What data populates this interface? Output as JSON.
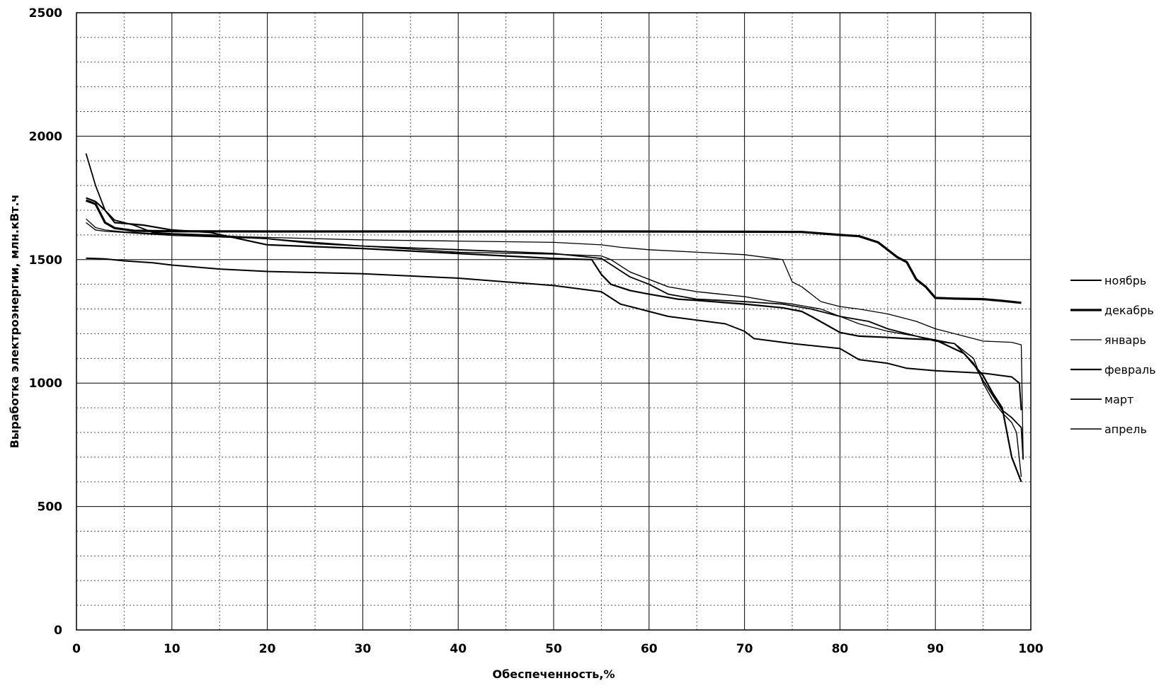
{
  "chart_data": {
    "type": "line",
    "title": "",
    "xlabel": "Обеспеченность,%",
    "ylabel": "Выработка электроэнергии, млн.кВт.ч",
    "xlim": [
      0,
      100
    ],
    "ylim": [
      0,
      2500
    ],
    "x_ticks": [
      0,
      10,
      20,
      30,
      40,
      50,
      60,
      70,
      80,
      90,
      100
    ],
    "y_ticks": [
      0,
      500,
      1000,
      1500,
      2000,
      2500
    ],
    "grid": "major solid, minor dotted",
    "legend_position": "right",
    "series": [
      {
        "name": "ноябрь",
        "points": [
          [
            1,
            1506
          ],
          [
            3,
            1503
          ],
          [
            5,
            1495
          ],
          [
            8,
            1487
          ],
          [
            10,
            1478
          ],
          [
            15,
            1462
          ],
          [
            20,
            1452
          ],
          [
            30,
            1443
          ],
          [
            40,
            1425
          ],
          [
            45,
            1410
          ],
          [
            50,
            1395
          ],
          [
            52,
            1385
          ],
          [
            55,
            1370
          ],
          [
            57,
            1320
          ],
          [
            60,
            1290
          ],
          [
            62,
            1270
          ],
          [
            65,
            1255
          ],
          [
            68,
            1240
          ],
          [
            70,
            1210
          ],
          [
            71,
            1180
          ],
          [
            75,
            1160
          ],
          [
            80,
            1140
          ],
          [
            82,
            1095
          ],
          [
            85,
            1080
          ],
          [
            87,
            1060
          ],
          [
            90,
            1050
          ],
          [
            95,
            1040
          ],
          [
            97,
            1030
          ],
          [
            98,
            1025
          ],
          [
            98.8,
            1000
          ],
          [
            99,
            890
          ]
        ]
      },
      {
        "name": "декабрь",
        "points": [
          [
            1,
            1740
          ],
          [
            2,
            1725
          ],
          [
            3,
            1650
          ],
          [
            4,
            1628
          ],
          [
            6,
            1617
          ],
          [
            10,
            1615
          ],
          [
            20,
            1614
          ],
          [
            30,
            1614
          ],
          [
            40,
            1614
          ],
          [
            50,
            1614
          ],
          [
            58,
            1614
          ],
          [
            70,
            1613
          ],
          [
            76,
            1612
          ],
          [
            80,
            1600
          ],
          [
            82,
            1595
          ],
          [
            84,
            1570
          ],
          [
            86,
            1510
          ],
          [
            87,
            1490
          ],
          [
            88,
            1420
          ],
          [
            89,
            1390
          ],
          [
            90,
            1345
          ],
          [
            92,
            1342
          ],
          [
            95,
            1340
          ],
          [
            97,
            1333
          ],
          [
            99,
            1325
          ]
        ]
      },
      {
        "name": "январь",
        "points": [
          [
            1,
            1665
          ],
          [
            2,
            1630
          ],
          [
            3,
            1620
          ],
          [
            5,
            1612
          ],
          [
            10,
            1602
          ],
          [
            15,
            1595
          ],
          [
            20,
            1590
          ],
          [
            30,
            1580
          ],
          [
            40,
            1575
          ],
          [
            50,
            1570
          ],
          [
            55,
            1560
          ],
          [
            57,
            1550
          ],
          [
            60,
            1540
          ],
          [
            70,
            1520
          ],
          [
            72,
            1510
          ],
          [
            74,
            1500
          ],
          [
            75,
            1410
          ],
          [
            76,
            1390
          ],
          [
            78,
            1330
          ],
          [
            80,
            1310
          ],
          [
            82,
            1300
          ],
          [
            85,
            1280
          ],
          [
            88,
            1250
          ],
          [
            90,
            1220
          ],
          [
            93,
            1190
          ],
          [
            95,
            1170
          ],
          [
            98,
            1165
          ],
          [
            99,
            1155
          ],
          [
            99.2,
            700
          ]
        ]
      },
      {
        "name": "февраль",
        "points": [
          [
            1,
            1750
          ],
          [
            2,
            1735
          ],
          [
            3,
            1700
          ],
          [
            4,
            1650
          ],
          [
            7,
            1640
          ],
          [
            10,
            1620
          ],
          [
            14,
            1610
          ],
          [
            20,
            1560
          ],
          [
            30,
            1545
          ],
          [
            40,
            1525
          ],
          [
            45,
            1515
          ],
          [
            50,
            1505
          ],
          [
            54,
            1500
          ],
          [
            55,
            1440
          ],
          [
            56,
            1400
          ],
          [
            58,
            1375
          ],
          [
            60,
            1360
          ],
          [
            63,
            1340
          ],
          [
            65,
            1335
          ],
          [
            70,
            1320
          ],
          [
            74,
            1305
          ],
          [
            76,
            1290
          ],
          [
            77,
            1270
          ],
          [
            80,
            1205
          ],
          [
            82,
            1190
          ],
          [
            85,
            1185
          ],
          [
            87,
            1180
          ],
          [
            90,
            1175
          ],
          [
            93,
            1120
          ],
          [
            95,
            1030
          ],
          [
            96,
            960
          ],
          [
            97,
            900
          ],
          [
            98,
            700
          ],
          [
            99,
            600
          ]
        ]
      },
      {
        "name": "март",
        "points": [
          [
            1,
            1930
          ],
          [
            2,
            1800
          ],
          [
            3,
            1700
          ],
          [
            4,
            1660
          ],
          [
            6,
            1640
          ],
          [
            8,
            1610
          ],
          [
            10,
            1605
          ],
          [
            14,
            1600
          ],
          [
            20,
            1585
          ],
          [
            25,
            1565
          ],
          [
            30,
            1555
          ],
          [
            40,
            1540
          ],
          [
            50,
            1525
          ],
          [
            55,
            1505
          ],
          [
            56,
            1480
          ],
          [
            58,
            1430
          ],
          [
            60,
            1400
          ],
          [
            62,
            1360
          ],
          [
            65,
            1340
          ],
          [
            70,
            1330
          ],
          [
            74,
            1320
          ],
          [
            77,
            1300
          ],
          [
            80,
            1270
          ],
          [
            83,
            1250
          ],
          [
            85,
            1220
          ],
          [
            88,
            1190
          ],
          [
            90,
            1170
          ],
          [
            92,
            1160
          ],
          [
            94,
            1080
          ],
          [
            95,
            1010
          ],
          [
            96,
            950
          ],
          [
            97,
            890
          ],
          [
            98,
            860
          ],
          [
            99,
            820
          ],
          [
            99.2,
            690
          ]
        ]
      },
      {
        "name": "апрель",
        "points": [
          [
            1,
            1650
          ],
          [
            2,
            1620
          ],
          [
            3,
            1615
          ],
          [
            5,
            1610
          ],
          [
            7,
            1605
          ],
          [
            10,
            1598
          ],
          [
            20,
            1585
          ],
          [
            30,
            1555
          ],
          [
            40,
            1530
          ],
          [
            50,
            1522
          ],
          [
            55,
            1515
          ],
          [
            56,
            1500
          ],
          [
            58,
            1450
          ],
          [
            60,
            1420
          ],
          [
            62,
            1390
          ],
          [
            65,
            1370
          ],
          [
            70,
            1350
          ],
          [
            73,
            1330
          ],
          [
            75,
            1320
          ],
          [
            78,
            1300
          ],
          [
            80,
            1270
          ],
          [
            82,
            1240
          ],
          [
            85,
            1210
          ],
          [
            88,
            1190
          ],
          [
            90,
            1175
          ],
          [
            92,
            1160
          ],
          [
            94,
            1100
          ],
          [
            95,
            1000
          ],
          [
            96,
            930
          ],
          [
            97,
            880
          ],
          [
            98,
            840
          ],
          [
            98.5,
            800
          ],
          [
            99,
            620
          ]
        ]
      }
    ]
  }
}
